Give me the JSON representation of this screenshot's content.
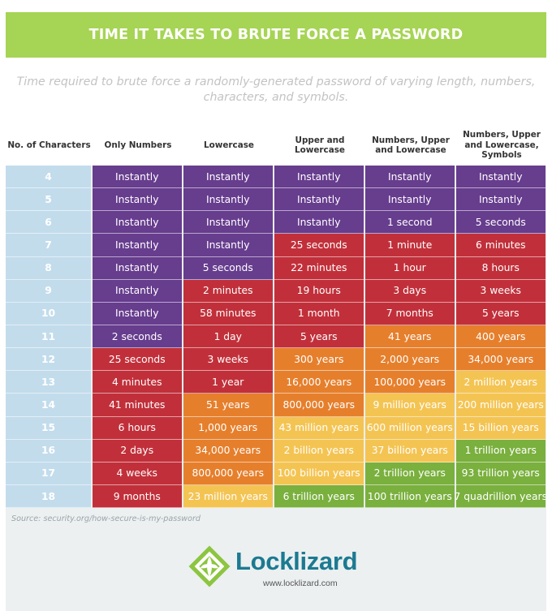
{
  "header": {
    "title": "TIME IT TAKES TO BRUTE FORCE A PASSWORD",
    "subtitle": "Time required to brute force a randomly-generated password of varying length, numbers, characters, and symbols."
  },
  "colors": {
    "banner": "#a6d454",
    "purple": "#673d8e",
    "red": "#c1303a",
    "orange": "#e67f2c",
    "yellow": "#f4c453",
    "green": "#7ab03e",
    "length_column": "#c2dcec",
    "panel": "#ecf0f1",
    "brand": "#1c7a91"
  },
  "table": {
    "columns": [
      "No. of Characters",
      "Only Numbers",
      "Lowercase",
      "Upper and Lowercase",
      "Numbers, Upper and Lowercase",
      "Numbers, Upper and Lowercase, Symbols"
    ],
    "rows": [
      {
        "length": "4",
        "cells": [
          [
            "Instantly",
            "purple"
          ],
          [
            "Instantly",
            "purple"
          ],
          [
            "Instantly",
            "purple"
          ],
          [
            "Instantly",
            "purple"
          ],
          [
            "Instantly",
            "purple"
          ]
        ]
      },
      {
        "length": "5",
        "cells": [
          [
            "Instantly",
            "purple"
          ],
          [
            "Instantly",
            "purple"
          ],
          [
            "Instantly",
            "purple"
          ],
          [
            "Instantly",
            "purple"
          ],
          [
            "Instantly",
            "purple"
          ]
        ]
      },
      {
        "length": "6",
        "cells": [
          [
            "Instantly",
            "purple"
          ],
          [
            "Instantly",
            "purple"
          ],
          [
            "Instantly",
            "purple"
          ],
          [
            "1 second",
            "purple"
          ],
          [
            "5 seconds",
            "purple"
          ]
        ]
      },
      {
        "length": "7",
        "cells": [
          [
            "Instantly",
            "purple"
          ],
          [
            "Instantly",
            "purple"
          ],
          [
            "25 seconds",
            "red"
          ],
          [
            "1 minute",
            "red"
          ],
          [
            "6 minutes",
            "red"
          ]
        ]
      },
      {
        "length": "8",
        "cells": [
          [
            "Instantly",
            "purple"
          ],
          [
            "5 seconds",
            "purple"
          ],
          [
            "22 minutes",
            "red"
          ],
          [
            "1 hour",
            "red"
          ],
          [
            "8 hours",
            "red"
          ]
        ]
      },
      {
        "length": "9",
        "cells": [
          [
            "Instantly",
            "purple"
          ],
          [
            "2 minutes",
            "red"
          ],
          [
            "19 hours",
            "red"
          ],
          [
            "3 days",
            "red"
          ],
          [
            "3 weeks",
            "red"
          ]
        ]
      },
      {
        "length": "10",
        "cells": [
          [
            "Instantly",
            "purple"
          ],
          [
            "58 minutes",
            "red"
          ],
          [
            "1 month",
            "red"
          ],
          [
            "7 months",
            "red"
          ],
          [
            "5 years",
            "red"
          ]
        ]
      },
      {
        "length": "11",
        "cells": [
          [
            "2 seconds",
            "purple"
          ],
          [
            "1 day",
            "red"
          ],
          [
            "5 years",
            "red"
          ],
          [
            "41 years",
            "orange"
          ],
          [
            "400 years",
            "orange"
          ]
        ]
      },
      {
        "length": "12",
        "cells": [
          [
            "25 seconds",
            "red"
          ],
          [
            "3 weeks",
            "red"
          ],
          [
            "300 years",
            "orange"
          ],
          [
            "2,000 years",
            "orange"
          ],
          [
            "34,000 years",
            "orange"
          ]
        ]
      },
      {
        "length": "13",
        "cells": [
          [
            "4 minutes",
            "red"
          ],
          [
            "1 year",
            "red"
          ],
          [
            "16,000 years",
            "orange"
          ],
          [
            "100,000 years",
            "orange"
          ],
          [
            "2 million years",
            "yellow"
          ]
        ]
      },
      {
        "length": "14",
        "cells": [
          [
            "41 minutes",
            "red"
          ],
          [
            "51 years",
            "orange"
          ],
          [
            "800,000 years",
            "orange"
          ],
          [
            "9 million years",
            "yellow"
          ],
          [
            "200 million years",
            "yellow"
          ]
        ]
      },
      {
        "length": "15",
        "cells": [
          [
            "6 hours",
            "red"
          ],
          [
            "1,000 years",
            "orange"
          ],
          [
            "43 million years",
            "yellow"
          ],
          [
            "600 million years",
            "yellow"
          ],
          [
            "15 billion years",
            "yellow"
          ]
        ]
      },
      {
        "length": "16",
        "cells": [
          [
            "2 days",
            "red"
          ],
          [
            "34,000 years",
            "orange"
          ],
          [
            "2 billion years",
            "yellow"
          ],
          [
            "37 billion years",
            "yellow"
          ],
          [
            "1 trillion years",
            "green"
          ]
        ]
      },
      {
        "length": "17",
        "cells": [
          [
            "4 weeks",
            "red"
          ],
          [
            "800,000 years",
            "orange"
          ],
          [
            "100 billion years",
            "yellow"
          ],
          [
            "2 trillion years",
            "green"
          ],
          [
            "93 trillion years",
            "green"
          ]
        ]
      },
      {
        "length": "18",
        "cells": [
          [
            "9 months",
            "red"
          ],
          [
            "23 million years",
            "yellow"
          ],
          [
            "6 trillion years",
            "green"
          ],
          [
            "100 trillion years",
            "green"
          ],
          [
            "7 quadrillion years",
            "green"
          ]
        ]
      }
    ]
  },
  "source": "Source: security.org/how-secure-is-my-password",
  "brand": {
    "name": "Locklizard",
    "url": "www.locklizard.com",
    "icon": "lizard-leaf-logo-icon"
  }
}
